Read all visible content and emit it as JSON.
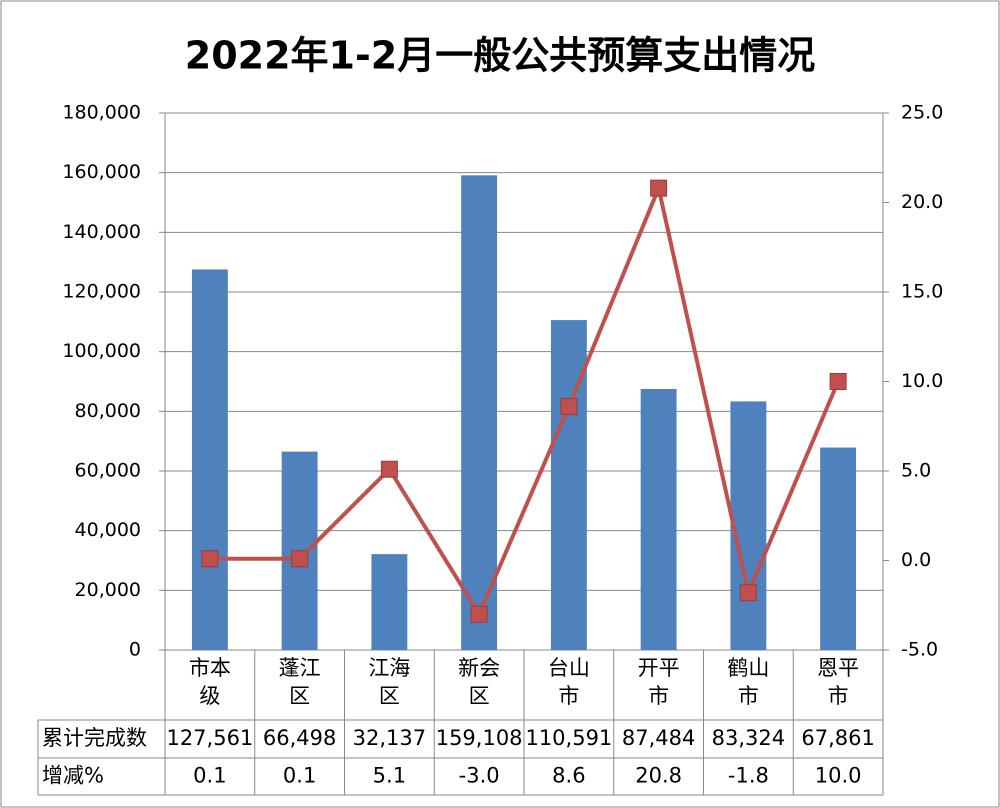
{
  "chart_data": {
    "type": "bar+line",
    "title": "2022年1-2月一般公共预算支出情况",
    "categories": [
      "市本级",
      "蓬江区",
      "江海区",
      "新会区",
      "台山市",
      "开平市",
      "鹤山市",
      "恩平市"
    ],
    "series": [
      {
        "name": "累计完成数",
        "type": "bar",
        "color": "#4f81bd",
        "values": [
          127561,
          66498,
          32137,
          159108,
          110591,
          87484,
          83324,
          67861
        ],
        "value_labels": [
          "127,561",
          "66,498",
          "32,137",
          "159,108",
          "110,591",
          "87,484",
          "83,324",
          "67,861"
        ]
      },
      {
        "name": "增减%",
        "type": "line",
        "axis": "y2",
        "color": "#c0504d",
        "values": [
          0.1,
          0.1,
          5.1,
          -3.0,
          8.6,
          20.8,
          -1.8,
          10.0
        ],
        "value_labels": [
          "0.1",
          "0.1",
          "5.1",
          "-3.0",
          "8.6",
          "20.8",
          "-1.8",
          "10.0"
        ]
      }
    ],
    "ylim": [
      0,
      180000
    ],
    "yticks": [
      0,
      {
        "value": 20000,
        "label": "20,000"
      },
      {
        "value": 40000,
        "label": "40,000"
      },
      {
        "value": 60000,
        "label": "60,000"
      },
      {
        "value": 80000,
        "label": "80,000"
      },
      {
        "value": 100000,
        "label": "100,000"
      },
      {
        "value": 120000,
        "label": "120,000"
      },
      {
        "value": 140000,
        "label": "140,000"
      },
      {
        "value": 160000,
        "label": "160,000"
      },
      {
        "value": 180000,
        "label": "180,000"
      }
    ],
    "y2lim": [
      -5,
      25
    ],
    "y2ticks": [
      {
        "value": -5,
        "label": "-5.0"
      },
      {
        "value": 0,
        "label": "0.0"
      },
      {
        "value": 5,
        "label": "5.0"
      },
      {
        "value": 10,
        "label": "10.0"
      },
      {
        "value": 15,
        "label": "15.0"
      },
      {
        "value": 20,
        "label": "20.0"
      },
      {
        "value": 25,
        "label": "25.0"
      }
    ],
    "grid": true
  }
}
